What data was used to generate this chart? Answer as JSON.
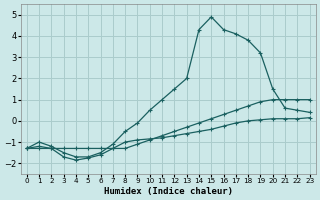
{
  "xlabel": "Humidex (Indice chaleur)",
  "xlim": [
    -0.5,
    23.5
  ],
  "ylim": [
    -2.5,
    5.5
  ],
  "yticks": [
    -2,
    -1,
    0,
    1,
    2,
    3,
    4,
    5
  ],
  "xticks": [
    0,
    1,
    2,
    3,
    4,
    5,
    6,
    7,
    8,
    9,
    10,
    11,
    12,
    13,
    14,
    15,
    16,
    17,
    18,
    19,
    20,
    21,
    22,
    23
  ],
  "background_color": "#cce8e8",
  "grid_color": "#aacccc",
  "line_color": "#1a6060",
  "line1_y": [
    -1.3,
    -1.3,
    -1.3,
    -1.3,
    -1.3,
    -1.3,
    -1.3,
    -1.3,
    -1.3,
    -1.1,
    -0.9,
    -0.7,
    -0.5,
    -0.3,
    -0.1,
    0.1,
    0.3,
    0.5,
    0.7,
    0.9,
    1.0,
    1.0,
    1.0,
    1.0
  ],
  "line2_y": [
    -1.3,
    -1.2,
    -1.3,
    -1.7,
    -1.85,
    -1.75,
    -1.6,
    -1.3,
    -1.0,
    -0.9,
    -0.85,
    -0.8,
    -0.7,
    -0.6,
    -0.5,
    -0.4,
    -0.25,
    -0.1,
    0.0,
    0.05,
    0.1,
    0.1,
    0.1,
    0.15
  ],
  "line3_y": [
    -1.3,
    -1.0,
    -1.2,
    -1.5,
    -1.7,
    -1.7,
    -1.5,
    -1.1,
    -0.5,
    -0.1,
    0.5,
    1.0,
    1.5,
    2.0,
    4.3,
    4.9,
    4.3,
    4.1,
    3.8,
    3.2,
    1.5,
    0.6,
    0.5,
    0.4
  ]
}
